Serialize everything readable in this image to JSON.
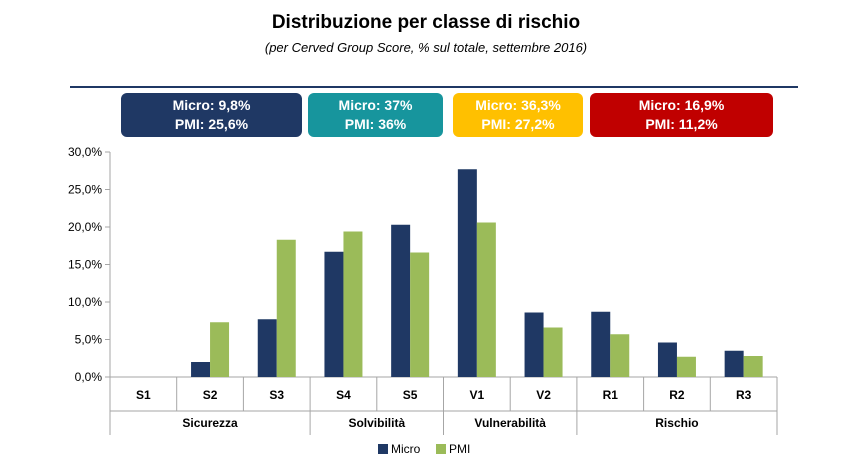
{
  "title": "Distribuzione per classe di rischio",
  "subtitle": "(per Cerved Group Score, % sul totale, settembre 2016)",
  "boxes": [
    {
      "line1": "Micro: 9,8%",
      "line2": "PMI: 25,6%",
      "color": "#1f3864"
    },
    {
      "line1": "Micro: 37%",
      "line2": "PMI: 36%",
      "color": "#17959d"
    },
    {
      "line1": "Micro: 36,3%",
      "line2": "PMI: 27,2%",
      "color": "#ffc000"
    },
    {
      "line1": "Micro: 16,9%",
      "line2": "PMI: 11,2%",
      "color": "#c00000"
    }
  ],
  "chart_data": {
    "type": "bar",
    "categories": [
      "S1",
      "S2",
      "S3",
      "S4",
      "S5",
      "V1",
      "V2",
      "R1",
      "R2",
      "R3"
    ],
    "groups": [
      {
        "label": "Sicurezza",
        "categories": [
          "S1",
          "S2",
          "S3"
        ]
      },
      {
        "label": "Solvibilità",
        "categories": [
          "S4",
          "S5"
        ]
      },
      {
        "label": "Vulnerabilità",
        "categories": [
          "V1",
          "V2"
        ]
      },
      {
        "label": "Rischio",
        "categories": [
          "R1",
          "R2",
          "R3"
        ]
      }
    ],
    "series": [
      {
        "name": "Micro",
        "color": "#1f3864",
        "values": [
          0,
          2.0,
          7.7,
          16.7,
          20.3,
          27.7,
          8.6,
          8.7,
          4.6,
          3.5
        ]
      },
      {
        "name": "PMI",
        "color": "#9bbb59",
        "values": [
          0,
          7.3,
          18.3,
          19.4,
          16.6,
          20.6,
          6.6,
          5.7,
          2.7,
          2.8
        ]
      }
    ],
    "yticks": [
      "0,0%",
      "5,0%",
      "10,0%",
      "15,0%",
      "20,0%",
      "25,0%",
      "30,0%"
    ],
    "ylim": [
      0,
      30
    ],
    "grid": false,
    "legend": "bottom-center"
  }
}
